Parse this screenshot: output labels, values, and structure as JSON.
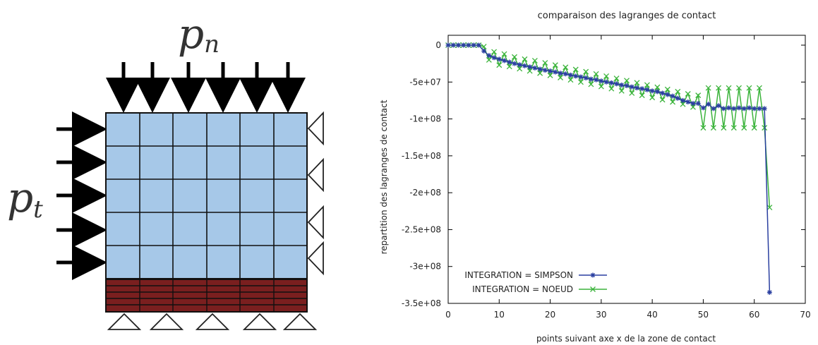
{
  "figure": {
    "left": {
      "load_normal_label": "p",
      "load_normal_sub": "n",
      "load_tangent_label": "p",
      "load_tangent_sub": "t",
      "colors": {
        "mesh_fill": "#a6c8e8",
        "foundation_fill": "#7a1f1f",
        "arrow": "#000000",
        "line": "#222222"
      }
    }
  },
  "chart_data": {
    "type": "line",
    "title": "comparaison des lagranges de contact",
    "xlabel": "points suivant axe x de la zone de contact",
    "ylabel": "repartition des lagranges de contact",
    "xlim": [
      0,
      70
    ],
    "ylim": [
      -350000000,
      0
    ],
    "xticks": [
      0,
      10,
      20,
      30,
      40,
      50,
      60,
      70
    ],
    "xtick_labels": [
      "0",
      "10",
      "20",
      "30",
      "40",
      "50",
      "60",
      "70"
    ],
    "yticks": [
      0,
      -50000000,
      -100000000,
      -150000000,
      -200000000,
      -250000000,
      -300000000,
      -350000000
    ],
    "ytick_labels": [
      "0",
      "-5e+07",
      "-1e+08",
      "-1.5e+08",
      "-2e+08",
      "-2.5e+08",
      "-3e+08",
      "-3.5e+08"
    ],
    "grid": false,
    "legend_position": "bottom-left",
    "series": [
      {
        "name": "INTEGRATION = SIMPSON",
        "color": "#2a3fa0",
        "x": [
          0,
          1,
          2,
          3,
          4,
          5,
          6,
          7,
          8,
          9,
          10,
          11,
          12,
          13,
          14,
          15,
          16,
          17,
          18,
          19,
          20,
          21,
          22,
          23,
          24,
          25,
          26,
          27,
          28,
          29,
          30,
          31,
          32,
          33,
          34,
          35,
          36,
          37,
          38,
          39,
          40,
          41,
          42,
          43,
          44,
          45,
          46,
          47,
          48,
          49,
          50,
          51,
          52,
          53,
          54,
          55,
          56,
          57,
          58,
          59,
          60,
          61,
          62,
          63
        ],
        "y": [
          0,
          0,
          0,
          0,
          0,
          0,
          0,
          -8000000,
          -14000000,
          -17000000,
          -19000000,
          -21000000,
          -23000000,
          -25000000,
          -26500000,
          -28000000,
          -29500000,
          -31000000,
          -32500000,
          -34000000,
          -35000000,
          -36500000,
          -38000000,
          -39000000,
          -40500000,
          -42000000,
          -43000000,
          -44500000,
          -46000000,
          -47000000,
          -48500000,
          -50000000,
          -51000000,
          -52500000,
          -54000000,
          -55000000,
          -56500000,
          -58000000,
          -59000000,
          -60500000,
          -62000000,
          -63000000,
          -65000000,
          -67000000,
          -69000000,
          -72000000,
          -75000000,
          -77000000,
          -79000000,
          -79000000,
          -85000000,
          -80000000,
          -86000000,
          -82000000,
          -86000000,
          -85000000,
          -86000000,
          -85000000,
          -86000000,
          -85000000,
          -86000000,
          -86000000,
          -86000000,
          -335000000
        ]
      },
      {
        "name": "INTEGRATION = NOEUD",
        "color": "#3cb43c",
        "x": [
          0,
          1,
          2,
          3,
          4,
          5,
          6,
          7,
          8,
          9,
          10,
          11,
          12,
          13,
          14,
          15,
          16,
          17,
          18,
          19,
          20,
          21,
          22,
          23,
          24,
          25,
          26,
          27,
          28,
          29,
          30,
          31,
          32,
          33,
          34,
          35,
          36,
          37,
          38,
          39,
          40,
          41,
          42,
          43,
          44,
          45,
          46,
          47,
          48,
          49,
          50,
          51,
          52,
          53,
          54,
          55,
          56,
          57,
          58,
          59,
          60,
          61,
          62,
          63
        ],
        "y": [
          0,
          0,
          0,
          0,
          0,
          0,
          0,
          -2000000,
          -20000000,
          -9000000,
          -27000000,
          -12000000,
          -29000000,
          -16000000,
          -32000000,
          -19000000,
          -35000000,
          -21000000,
          -38000000,
          -24000000,
          -41000000,
          -27000000,
          -44000000,
          -30000000,
          -47000000,
          -33000000,
          -50000000,
          -36000000,
          -53000000,
          -39000000,
          -56000000,
          -42000000,
          -59000000,
          -45000000,
          -62000000,
          -48000000,
          -65000000,
          -51000000,
          -68000000,
          -54000000,
          -71000000,
          -57000000,
          -74000000,
          -60000000,
          -77000000,
          -63000000,
          -80000000,
          -66000000,
          -84000000,
          -68000000,
          -112000000,
          -58000000,
          -112000000,
          -58000000,
          -112000000,
          -58000000,
          -112000000,
          -58000000,
          -112000000,
          -58000000,
          -112000000,
          -58000000,
          -112000000,
          -220000000
        ]
      }
    ]
  }
}
